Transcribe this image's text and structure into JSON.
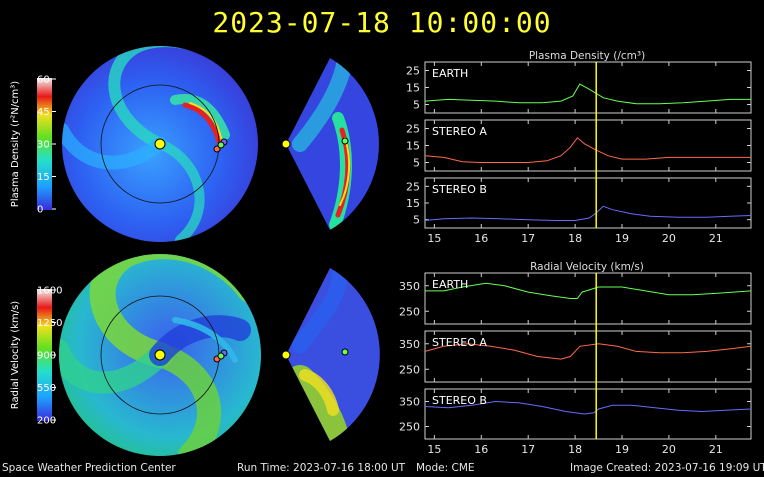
{
  "title": "2023-07-18  10:00:00",
  "footer": {
    "center": "Space Weather Prediction Center",
    "run_time": "Run Time: 2023-07-16 18:00 UT",
    "mode": "Mode: CME",
    "created": "Image Created: 2023-07-16 19:09 UT"
  },
  "colorbars": {
    "density": {
      "label": "Plasma Density (r²N/cm³)",
      "ticks": [
        "60",
        "45",
        "30",
        "15",
        "0"
      ]
    },
    "velocity": {
      "label": "Radial Velocity (km/s)",
      "ticks": [
        "1600",
        "1250",
        "900",
        "550",
        "200"
      ]
    }
  },
  "colors": {
    "title": "#ffff33",
    "earth": "#66ff55",
    "stereo_a": "#ff6a4a",
    "stereo_b": "#6a6aff",
    "marker": "#ffff00"
  },
  "chart_data": [
    {
      "type": "line",
      "title": "Plasma Density (/cm³)",
      "x_ticks": [
        "15",
        "16",
        "17",
        "18",
        "19",
        "20",
        "21"
      ],
      "xlim": [
        14.8,
        21.75
      ],
      "current_time": 18.45,
      "panels": [
        {
          "name": "EARTH",
          "color": "#66ff55",
          "ylim": [
            0,
            30
          ],
          "yticks": [
            "25",
            "15",
            "5"
          ],
          "x": [
            14.8,
            15.3,
            15.8,
            16.3,
            16.8,
            17.3,
            17.7,
            17.95,
            18.1,
            18.3,
            18.6,
            18.9,
            19.3,
            19.8,
            20.3,
            20.8,
            21.3,
            21.75
          ],
          "y": [
            7,
            8,
            7.5,
            7,
            6,
            6,
            7,
            10,
            17,
            14,
            9,
            7,
            5.5,
            5.5,
            6,
            7,
            8,
            8
          ]
        },
        {
          "name": "STEREO A",
          "color": "#ff6a4a",
          "ylim": [
            0,
            30
          ],
          "yticks": [
            "25",
            "15",
            "5"
          ],
          "x": [
            14.8,
            15.2,
            15.6,
            16,
            16.5,
            17,
            17.4,
            17.7,
            17.9,
            18.05,
            18.2,
            18.4,
            18.7,
            19,
            19.5,
            20,
            20.5,
            21,
            21.75
          ],
          "y": [
            9,
            8,
            5.5,
            5,
            5,
            5,
            6,
            9,
            14,
            19.5,
            16,
            13,
            9,
            7,
            7,
            8,
            8,
            8,
            8
          ]
        },
        {
          "name": "STEREO B",
          "color": "#6a6aff",
          "ylim": [
            0,
            30
          ],
          "yticks": [
            "25",
            "15",
            "5"
          ],
          "x": [
            14.8,
            15.2,
            15.8,
            16.4,
            17,
            17.6,
            18,
            18.3,
            18.45,
            18.6,
            18.8,
            19.2,
            19.6,
            20.2,
            20.8,
            21.3,
            21.75
          ],
          "y": [
            4.5,
            5.5,
            6,
            5.5,
            5,
            4.5,
            4.5,
            6,
            9,
            13,
            11,
            8.5,
            7,
            6.5,
            6.5,
            7,
            7.5
          ]
        }
      ]
    },
    {
      "type": "line",
      "title": "Radial Velocity (km/s)",
      "x_ticks": [
        "15",
        "16",
        "17",
        "18",
        "19",
        "20",
        "21"
      ],
      "xlim": [
        14.8,
        21.75
      ],
      "current_time": 18.45,
      "panels": [
        {
          "name": "EARTH",
          "color": "#66ff55",
          "ylim": [
            200,
            400
          ],
          "yticks": [
            "350",
            "250"
          ],
          "x": [
            14.8,
            15.2,
            15.6,
            16.1,
            16.5,
            17,
            17.5,
            17.9,
            18.05,
            18.15,
            18.5,
            19,
            19.5,
            20,
            20.5,
            21,
            21.75
          ],
          "y": [
            330,
            330,
            345,
            360,
            350,
            325,
            310,
            300,
            300,
            325,
            345,
            345,
            330,
            315,
            315,
            320,
            330
          ]
        },
        {
          "name": "STEREO A",
          "color": "#ff6a4a",
          "ylim": [
            200,
            400
          ],
          "yticks": [
            "350",
            "250"
          ],
          "x": [
            14.8,
            15.2,
            15.7,
            16.2,
            16.7,
            17.2,
            17.7,
            17.9,
            18.1,
            18.5,
            18.9,
            19.3,
            19.8,
            20.3,
            20.8,
            21.3,
            21.75
          ],
          "y": [
            320,
            340,
            350,
            340,
            325,
            300,
            290,
            300,
            340,
            350,
            340,
            320,
            315,
            315,
            320,
            330,
            340
          ]
        },
        {
          "name": "STEREO B",
          "color": "#6a6aff",
          "ylim": [
            200,
            400
          ],
          "yticks": [
            "350",
            "250"
          ],
          "x": [
            14.8,
            15.3,
            15.8,
            16.3,
            16.8,
            17.3,
            17.8,
            18.2,
            18.4,
            18.5,
            18.8,
            19.2,
            19.7,
            20.2,
            20.7,
            21.2,
            21.75
          ],
          "y": [
            330,
            325,
            335,
            350,
            345,
            330,
            310,
            300,
            305,
            320,
            335,
            335,
            325,
            315,
            310,
            315,
            320
          ]
        }
      ]
    }
  ]
}
